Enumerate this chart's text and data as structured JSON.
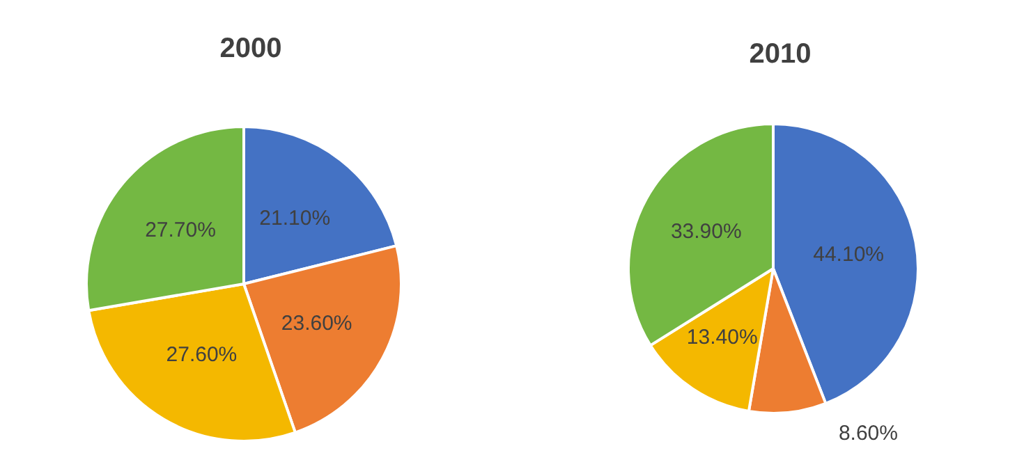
{
  "chart_data": [
    {
      "type": "pie",
      "title": "2000",
      "categories": [
        null,
        null,
        null,
        null
      ],
      "values": [
        21.1,
        23.6,
        27.6,
        27.7
      ],
      "colors": [
        "#4472c4",
        "#ed7d31",
        "#f4b800",
        "#74b843"
      ],
      "value_labels": [
        "21.10%",
        "23.60%",
        "27.60%",
        "27.70%"
      ]
    },
    {
      "type": "pie",
      "title": "2010",
      "categories": [
        null,
        null,
        null,
        null
      ],
      "values": [
        44.1,
        8.6,
        13.4,
        33.9
      ],
      "colors": [
        "#4472c4",
        "#ed7d31",
        "#f4b800",
        "#74b843"
      ],
      "value_labels": [
        "44.10%",
        "8.60%",
        "13.40%",
        "33.90%"
      ]
    }
  ]
}
